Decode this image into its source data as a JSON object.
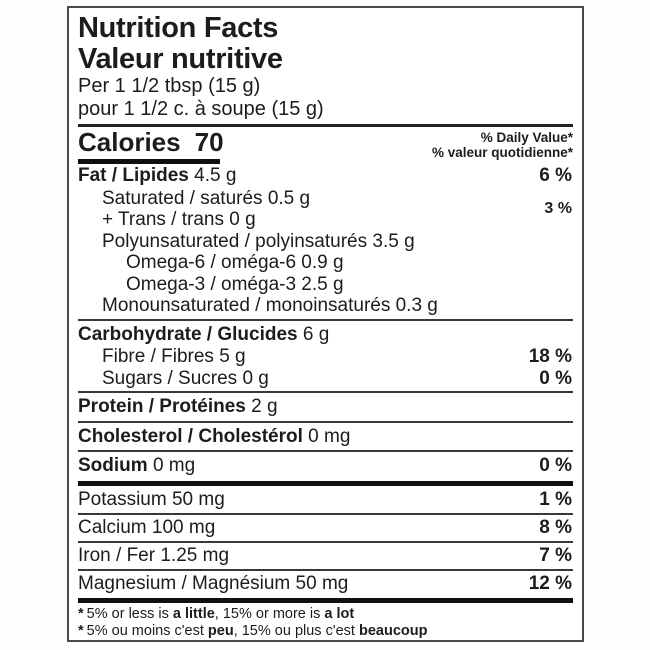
{
  "label": {
    "title_en": "Nutrition Facts",
    "title_fr": "Valeur nutritive",
    "serving_en": "Per 1 1/2 tbsp (15 g)",
    "serving_fr": "pour 1 1/2 c. à soupe (15 g)",
    "calories": {
      "label": "Calories",
      "value": "70"
    },
    "dv_header_en": "% Daily Value*",
    "dv_header_fr": "% valeur quotidienne*",
    "nutrients": {
      "fat": {
        "name": "Fat / Lipides",
        "amount": "4.5 g",
        "dv": "6 %"
      },
      "saturated": {
        "name": "Saturated / saturés 0.5 g"
      },
      "trans": {
        "name": "+ Trans / trans 0 g"
      },
      "sat_trans_dv": "3 %",
      "polyunsaturated": {
        "name": "Polyunsaturated / polyinsaturés 3.5 g"
      },
      "omega6": {
        "name": "Omega-6 / oméga-6 0.9 g"
      },
      "omega3": {
        "name": "Omega-3 / oméga-3 2.5 g"
      },
      "monounsaturated": {
        "name": "Monounsaturated / monoinsaturés 0.3 g"
      },
      "carbohydrate": {
        "name": "Carbohydrate / Glucides",
        "amount": "6 g"
      },
      "fibre": {
        "name": "Fibre / Fibres 5 g",
        "dv": "18 %"
      },
      "sugars": {
        "name": "Sugars / Sucres 0 g",
        "dv": "0 %"
      },
      "protein": {
        "name": "Protein / Protéines",
        "amount": "2 g"
      },
      "cholesterol": {
        "name": "Cholesterol / Cholestérol",
        "amount": "0 mg"
      },
      "sodium": {
        "name": "Sodium",
        "amount": "0 mg",
        "dv": "0 %"
      },
      "potassium": {
        "name": "Potassium 50 mg",
        "dv": "1 %"
      },
      "calcium": {
        "name": "Calcium 100 mg",
        "dv": "8 %"
      },
      "iron": {
        "name": "Iron / Fer 1.25 mg",
        "dv": "7 %"
      },
      "magnesium": {
        "name": "Magnesium / Magnésium 50 mg",
        "dv": "12 %"
      }
    },
    "footnote_en": {
      "star": "*",
      "p1": "5% or less is",
      "b1": " a little",
      "p2": ", 15% or more is",
      "b2": " a lot"
    },
    "footnote_fr": {
      "star": "*",
      "p1": "5% ou moins c'est",
      "b1": " peu",
      "p2": ", 15% ou plus c'est",
      "b2": " beaucoup"
    },
    "colors": {
      "text": "#1c1c1c",
      "thin_rule": "#383838",
      "thick_rule": "#101010",
      "background": "#ffffff"
    }
  }
}
